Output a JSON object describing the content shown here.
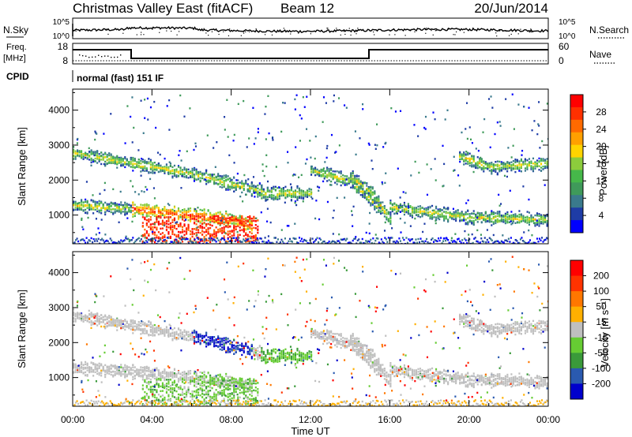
{
  "header": {
    "title": "Christmas Valley East (fitACF)",
    "beam": "Beam 12",
    "date": "20/Jun/2014"
  },
  "top_panels": {
    "nsky_label": "N.Sky",
    "nsky_ticks": [
      "10^5",
      "10^0"
    ],
    "nsearch_label": "N.Search",
    "nsearch_ticks": [
      "10^5",
      "10^0"
    ],
    "freq_label_1": "Freq.",
    "freq_label_2": "[MHz]",
    "freq_ticks": [
      "18",
      "8"
    ],
    "nave_label": "Nave",
    "nave_ticks": [
      "60",
      "0"
    ],
    "cpid_label": "CPID",
    "cpid_value": "normal (fast) 151 IF"
  },
  "chart_data": [
    {
      "type": "heatmap",
      "name": "power",
      "ylabel": "Slant Range [km]",
      "yticks": [
        "4000",
        "3000",
        "2000",
        "1000"
      ],
      "ylim": [
        180,
        4600
      ],
      "xlim": [
        0,
        24
      ],
      "colorbar_label": "Power [dB]",
      "colorbar_ticks": [
        "28",
        "24",
        "20",
        "16",
        "12",
        "8",
        "4"
      ],
      "colorbar_colors": [
        "#0000ff",
        "#1e3ca6",
        "#3a7a8c",
        "#3f9a5a",
        "#46b84a",
        "#8ccc3c",
        "#ffd400",
        "#ffa000",
        "#ff6a00",
        "#ff3000",
        "#ff0000"
      ],
      "bands": [
        {
          "x": [
            0,
            3,
            6,
            9.5
          ],
          "y": [
            2800,
            2500,
            2200,
            1700
          ]
        },
        {
          "x": [
            0,
            3,
            8,
            9
          ],
          "y": [
            1300,
            1200,
            900,
            700
          ]
        },
        {
          "x": [
            9.5,
            12
          ],
          "y": [
            1650,
            1650
          ]
        },
        {
          "x": [
            12,
            14,
            15.5
          ],
          "y": [
            2300,
            2000,
            1200
          ]
        },
        {
          "x": [
            14,
            15,
            16
          ],
          "y": [
            2100,
            1700,
            900
          ]
        },
        {
          "x": [
            16,
            18,
            20,
            24
          ],
          "y": [
            1250,
            1100,
            950,
            900
          ]
        },
        {
          "x": [
            19.5,
            21,
            24
          ],
          "y": [
            2700,
            2400,
            2500
          ]
        }
      ]
    },
    {
      "type": "heatmap",
      "name": "velocity",
      "ylabel": "Slant Range [km]",
      "yticks": [
        "4000",
        "3000",
        "2000",
        "1000"
      ],
      "ylim": [
        180,
        4600
      ],
      "xlim": [
        0,
        24
      ],
      "xticks": [
        "00:00",
        "04:00",
        "08:00",
        "12:00",
        "16:00",
        "20:00",
        "00:00"
      ],
      "xlabel": "Time UT",
      "colorbar_label": "Velocity [m s⁻¹]",
      "colorbar_ticks": [
        "200",
        "100",
        "50",
        "15",
        "-15",
        "-50",
        "-100",
        "-200"
      ],
      "colorbar_colors": [
        "#0000cc",
        "#2a5ab0",
        "#3a9a3a",
        "#66cc33",
        "#bfbfbf",
        "#ffb000",
        "#ff7700",
        "#ff3300",
        "#ff0000"
      ]
    }
  ]
}
